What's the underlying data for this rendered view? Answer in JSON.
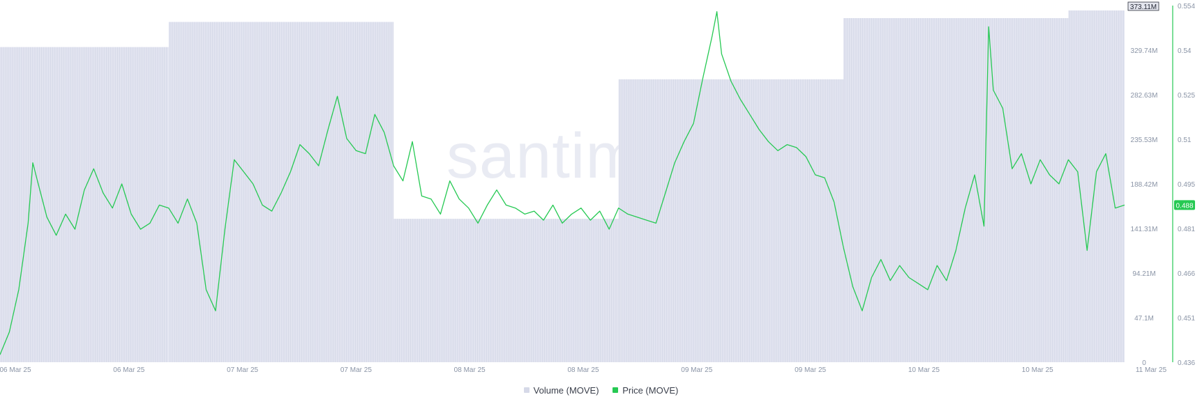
{
  "chart_data": {
    "type": "bar+line",
    "watermark": "santiment",
    "x_ticks": [
      "06 Mar 25",
      "06 Mar 25",
      "07 Mar 25",
      "07 Mar 25",
      "08 Mar 25",
      "08 Mar 25",
      "09 Mar 25",
      "09 Mar 25",
      "10 Mar 25",
      "10 Mar 25",
      "11 Mar 25"
    ],
    "y_left": {
      "label": "Volume (MOVE)",
      "ticks": [
        "0",
        "47.1M",
        "94.21M",
        "141.31M",
        "188.42M",
        "235.53M",
        "282.63M",
        "329.74M",
        "373.11M"
      ],
      "range": [
        0,
        373.11
      ],
      "unit": "M"
    },
    "y_right": {
      "label": "Price (MOVE)",
      "ticks": [
        "0.436",
        "0.451",
        "0.466",
        "0.481",
        "0.495",
        "0.51",
        "0.525",
        "0.54",
        "0.554"
      ],
      "range": [
        0.436,
        0.554
      ]
    },
    "current_volume_label": "373.11M",
    "current_price_label": "0.488",
    "volume_series": {
      "name": "Volume (MOVE)",
      "color": "#dcdfeb",
      "segments": [
        {
          "from": "06 Mar 25 00:00",
          "to": "06 Mar 25 18:00",
          "value": 329.7
        },
        {
          "from": "06 Mar 25 18:00",
          "to": "07 Mar 25 18:00",
          "value": 356.0
        },
        {
          "from": "07 Mar 25 18:00",
          "to": "08 Mar 25 18:00",
          "value": 150.0
        },
        {
          "from": "08 Mar 25 18:00",
          "to": "09 Mar 25 18:00",
          "value": 296.0
        },
        {
          "from": "09 Mar 25 18:00",
          "to": "10 Mar 25 18:00",
          "value": 360.0
        },
        {
          "from": "10 Mar 25 18:00",
          "to": "11 Mar 25 00:00",
          "value": 368.0
        }
      ]
    },
    "price_series": {
      "name": "Price (MOVE)",
      "color": "#26c953",
      "points": [
        [
          "06 Mar 25 00:00",
          0.4385
        ],
        [
          "06 Mar 25 01:00",
          0.446
        ],
        [
          "06 Mar 25 02:00",
          0.46
        ],
        [
          "06 Mar 25 03:00",
          0.482
        ],
        [
          "06 Mar 25 03:30",
          0.502
        ],
        [
          "06 Mar 25 04:00",
          0.496
        ],
        [
          "06 Mar 25 05:00",
          0.484
        ],
        [
          "06 Mar 25 06:00",
          0.478
        ],
        [
          "06 Mar 25 07:00",
          0.485
        ],
        [
          "06 Mar 25 08:00",
          0.48
        ],
        [
          "06 Mar 25 09:00",
          0.493
        ],
        [
          "06 Mar 25 10:00",
          0.5
        ],
        [
          "06 Mar 25 11:00",
          0.492
        ],
        [
          "06 Mar 25 12:00",
          0.487
        ],
        [
          "06 Mar 25 13:00",
          0.495
        ],
        [
          "06 Mar 25 14:00",
          0.485
        ],
        [
          "06 Mar 25 15:00",
          0.48
        ],
        [
          "06 Mar 25 16:00",
          0.482
        ],
        [
          "06 Mar 25 17:00",
          0.488
        ],
        [
          "06 Mar 25 18:00",
          0.487
        ],
        [
          "06 Mar 25 19:00",
          0.482
        ],
        [
          "06 Mar 25 20:00",
          0.49
        ],
        [
          "06 Mar 25 21:00",
          0.482
        ],
        [
          "06 Mar 25 22:00",
          0.46
        ],
        [
          "06 Mar 25 23:00",
          0.453
        ],
        [
          "07 Mar 25 00:00",
          0.48
        ],
        [
          "07 Mar 25 01:00",
          0.503
        ],
        [
          "07 Mar 25 02:00",
          0.499
        ],
        [
          "07 Mar 25 03:00",
          0.495
        ],
        [
          "07 Mar 25 04:00",
          0.488
        ],
        [
          "07 Mar 25 05:00",
          0.486
        ],
        [
          "07 Mar 25 06:00",
          0.492
        ],
        [
          "07 Mar 25 07:00",
          0.499
        ],
        [
          "07 Mar 25 08:00",
          0.508
        ],
        [
          "07 Mar 25 09:00",
          0.505
        ],
        [
          "07 Mar 25 10:00",
          0.501
        ],
        [
          "07 Mar 25 11:00",
          0.513
        ],
        [
          "07 Mar 25 12:00",
          0.524
        ],
        [
          "07 Mar 25 13:00",
          0.51
        ],
        [
          "07 Mar 25 14:00",
          0.506
        ],
        [
          "07 Mar 25 15:00",
          0.505
        ],
        [
          "07 Mar 25 16:00",
          0.518
        ],
        [
          "07 Mar 25 17:00",
          0.512
        ],
        [
          "07 Mar 25 18:00",
          0.501
        ],
        [
          "07 Mar 25 19:00",
          0.496
        ],
        [
          "07 Mar 25 20:00",
          0.509
        ],
        [
          "07 Mar 25 21:00",
          0.491
        ],
        [
          "07 Mar 25 22:00",
          0.49
        ],
        [
          "07 Mar 25 23:00",
          0.485
        ],
        [
          "08 Mar 25 00:00",
          0.496
        ],
        [
          "08 Mar 25 01:00",
          0.49
        ],
        [
          "08 Mar 25 02:00",
          0.487
        ],
        [
          "08 Mar 25 03:00",
          0.482
        ],
        [
          "08 Mar 25 04:00",
          0.488
        ],
        [
          "08 Mar 25 05:00",
          0.493
        ],
        [
          "08 Mar 25 06:00",
          0.488
        ],
        [
          "08 Mar 25 07:00",
          0.487
        ],
        [
          "08 Mar 25 08:00",
          0.485
        ],
        [
          "08 Mar 25 09:00",
          0.486
        ],
        [
          "08 Mar 25 10:00",
          0.483
        ],
        [
          "08 Mar 25 11:00",
          0.488
        ],
        [
          "08 Mar 25 12:00",
          0.482
        ],
        [
          "08 Mar 25 13:00",
          0.485
        ],
        [
          "08 Mar 25 14:00",
          0.487
        ],
        [
          "08 Mar 25 15:00",
          0.483
        ],
        [
          "08 Mar 25 16:00",
          0.486
        ],
        [
          "08 Mar 25 17:00",
          0.48
        ],
        [
          "08 Mar 25 18:00",
          0.487
        ],
        [
          "08 Mar 25 19:00",
          0.485
        ],
        [
          "08 Mar 25 20:00",
          0.484
        ],
        [
          "08 Mar 25 21:00",
          0.483
        ],
        [
          "08 Mar 25 22:00",
          0.482
        ],
        [
          "08 Mar 25 23:00",
          0.492
        ],
        [
          "09 Mar 25 00:00",
          0.502
        ],
        [
          "09 Mar 25 01:00",
          0.509
        ],
        [
          "09 Mar 25 02:00",
          0.515
        ],
        [
          "09 Mar 25 03:00",
          0.53
        ],
        [
          "09 Mar 25 04:00",
          0.544
        ],
        [
          "09 Mar 25 04:30",
          0.552
        ],
        [
          "09 Mar 25 05:00",
          0.538
        ],
        [
          "09 Mar 25 06:00",
          0.529
        ],
        [
          "09 Mar 25 07:00",
          0.523
        ],
        [
          "09 Mar 25 08:00",
          0.518
        ],
        [
          "09 Mar 25 09:00",
          0.513
        ],
        [
          "09 Mar 25 10:00",
          0.509
        ],
        [
          "09 Mar 25 11:00",
          0.506
        ],
        [
          "09 Mar 25 12:00",
          0.508
        ],
        [
          "09 Mar 25 13:00",
          0.507
        ],
        [
          "09 Mar 25 14:00",
          0.504
        ],
        [
          "09 Mar 25 15:00",
          0.498
        ],
        [
          "09 Mar 25 16:00",
          0.497
        ],
        [
          "09 Mar 25 17:00",
          0.489
        ],
        [
          "09 Mar 25 18:00",
          0.474
        ],
        [
          "09 Mar 25 19:00",
          0.461
        ],
        [
          "09 Mar 25 20:00",
          0.453
        ],
        [
          "09 Mar 25 21:00",
          0.464
        ],
        [
          "09 Mar 25 22:00",
          0.47
        ],
        [
          "09 Mar 25 23:00",
          0.463
        ],
        [
          "10 Mar 25 00:00",
          0.468
        ],
        [
          "10 Mar 25 01:00",
          0.464
        ],
        [
          "10 Mar 25 02:00",
          0.462
        ],
        [
          "10 Mar 25 03:00",
          0.46
        ],
        [
          "10 Mar 25 04:00",
          0.468
        ],
        [
          "10 Mar 25 05:00",
          0.463
        ],
        [
          "10 Mar 25 06:00",
          0.473
        ],
        [
          "10 Mar 25 07:00",
          0.487
        ],
        [
          "10 Mar 25 08:00",
          0.498
        ],
        [
          "10 Mar 25 09:00",
          0.481
        ],
        [
          "10 Mar 25 09:30",
          0.547
        ],
        [
          "10 Mar 25 10:00",
          0.526
        ],
        [
          "10 Mar 25 11:00",
          0.52
        ],
        [
          "10 Mar 25 12:00",
          0.5
        ],
        [
          "10 Mar 25 13:00",
          0.505
        ],
        [
          "10 Mar 25 14:00",
          0.495
        ],
        [
          "10 Mar 25 15:00",
          0.503
        ],
        [
          "10 Mar 25 16:00",
          0.498
        ],
        [
          "10 Mar 25 17:00",
          0.495
        ],
        [
          "10 Mar 25 18:00",
          0.503
        ],
        [
          "10 Mar 25 19:00",
          0.499
        ],
        [
          "10 Mar 25 20:00",
          0.473
        ],
        [
          "10 Mar 25 21:00",
          0.499
        ],
        [
          "10 Mar 25 22:00",
          0.505
        ],
        [
          "10 Mar 25 23:00",
          0.487
        ],
        [
          "11 Mar 25 00:00",
          0.488
        ]
      ]
    }
  },
  "legend": [
    {
      "label": "Volume (MOVE)",
      "color": "#d6d9e8"
    },
    {
      "label": "Price (MOVE)",
      "color": "#26c953"
    }
  ]
}
